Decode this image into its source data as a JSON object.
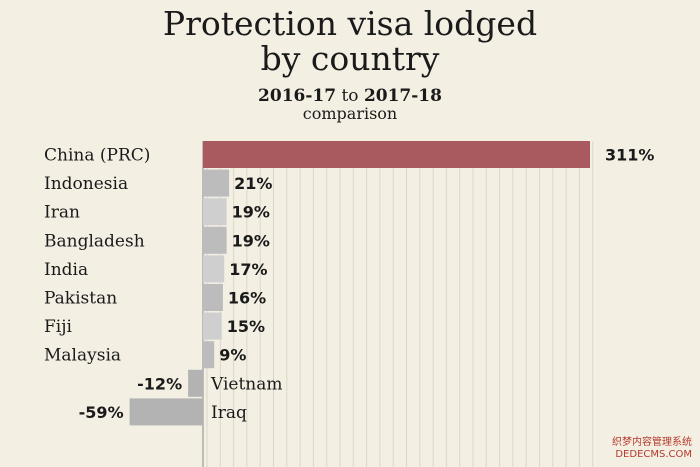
{
  "chart_data": {
    "type": "bar",
    "orientation": "horizontal",
    "title_line1": "Protection visa lodged",
    "title_line2": "by country",
    "subtitle_start": "2016-17",
    "subtitle_mid": " to ",
    "subtitle_end": "2017-18",
    "subtitle_line2": "comparison",
    "categories": [
      "China (PRC)",
      "Indonesia",
      "Iran",
      "Bangladesh",
      "India",
      "Pakistan",
      "Fiji",
      "Malaysia",
      "Vietnam",
      "Iraq"
    ],
    "values": [
      311,
      21,
      19,
      19,
      17,
      16,
      15,
      9,
      -12,
      -59
    ],
    "value_labels": [
      "311%",
      "21%",
      "19%",
      "19%",
      "17%",
      "16%",
      "15%",
      "9%",
      "-12%",
      "-59%"
    ],
    "unit": "%",
    "grid": "vertical",
    "colors": {
      "highlight": "#a85a5f",
      "bar_light": "#cfcfcf",
      "bar_mid": "#bcbcbc",
      "negative": "#b3b3b3",
      "background": "#f3efe3",
      "grid": "#dcd7cb"
    }
  },
  "watermark": {
    "line1": "织梦内容管理系统",
    "line2": "DEDECMS.COM"
  }
}
